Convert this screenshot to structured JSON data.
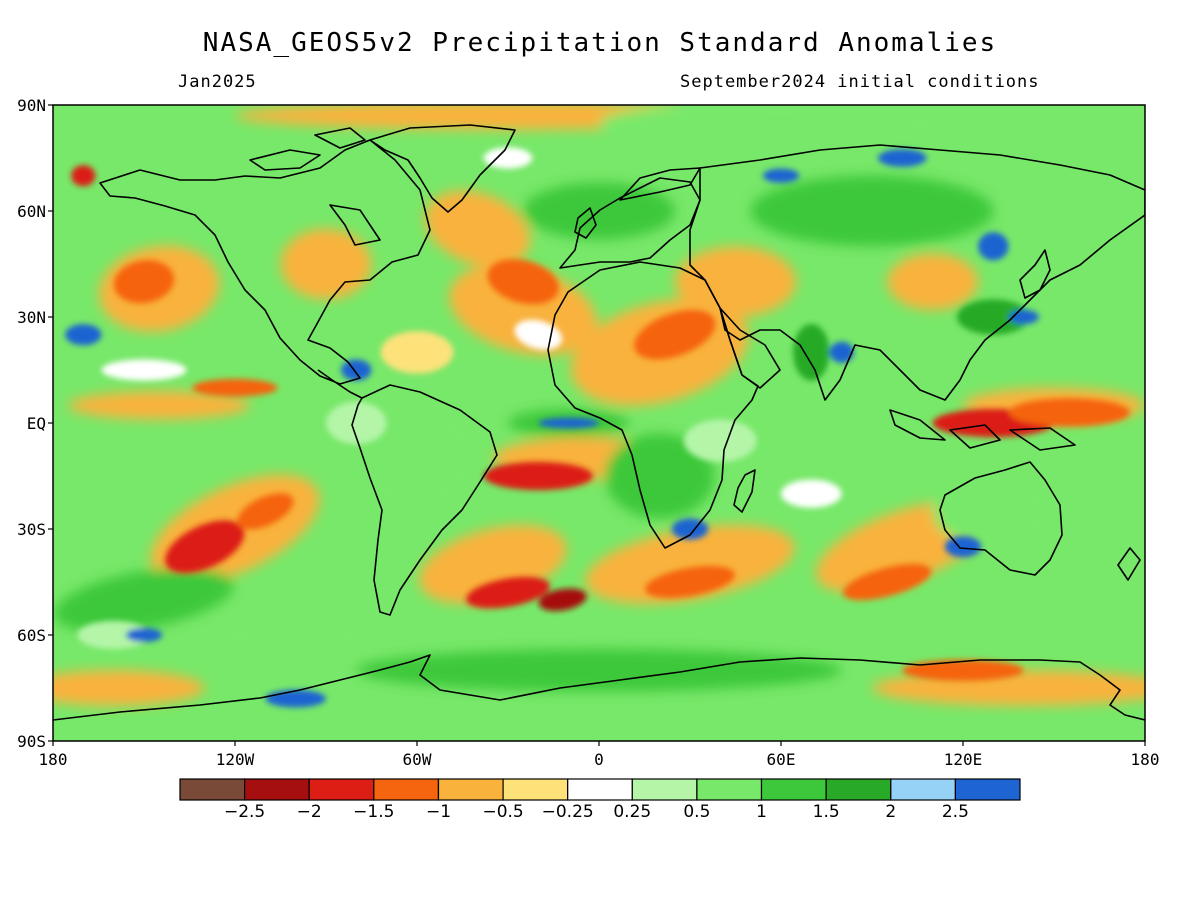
{
  "header": {
    "title": "NASA_GEOS5v2 Precipitation Standard Anomalies",
    "period": "Jan2025",
    "init": "September2024 initial conditions"
  },
  "axes": {
    "lat_labels": [
      "90N",
      "60N",
      "30N",
      "EQ",
      "30S",
      "60S",
      "90S"
    ],
    "lon_labels": [
      "180",
      "120W",
      "60W",
      "0",
      "60E",
      "120E",
      "180"
    ]
  },
  "colorbar": {
    "colors": [
      "#7a4a38",
      "#a50f0f",
      "#dc1e14",
      "#f5640f",
      "#f9b23c",
      "#fde27a",
      "#ffffff",
      "#b4f5a8",
      "#78e86a",
      "#3cc83a",
      "#28aa28",
      "#96d2f5",
      "#1e64d2"
    ],
    "labels": [
      "−2.5",
      "−2",
      "−1.5",
      "−1",
      "−0.5",
      "−0.25",
      "0.25",
      "0.5",
      "1",
      "1.5",
      "2",
      "2.5"
    ]
  },
  "map_colors": {
    "strong_dry": "#a50f0f",
    "dry": "#dc1e14",
    "moderate_dry": "#f5640f",
    "mild_dry": "#f9b23c",
    "slight_dry": "#fde27a",
    "neutral": "#ffffff",
    "slight_wet": "#b4f5a8",
    "mild_wet": "#78e86a",
    "wet": "#3cc83a",
    "very_wet": "#28aa28",
    "extreme_wet": "#1e64d2"
  }
}
